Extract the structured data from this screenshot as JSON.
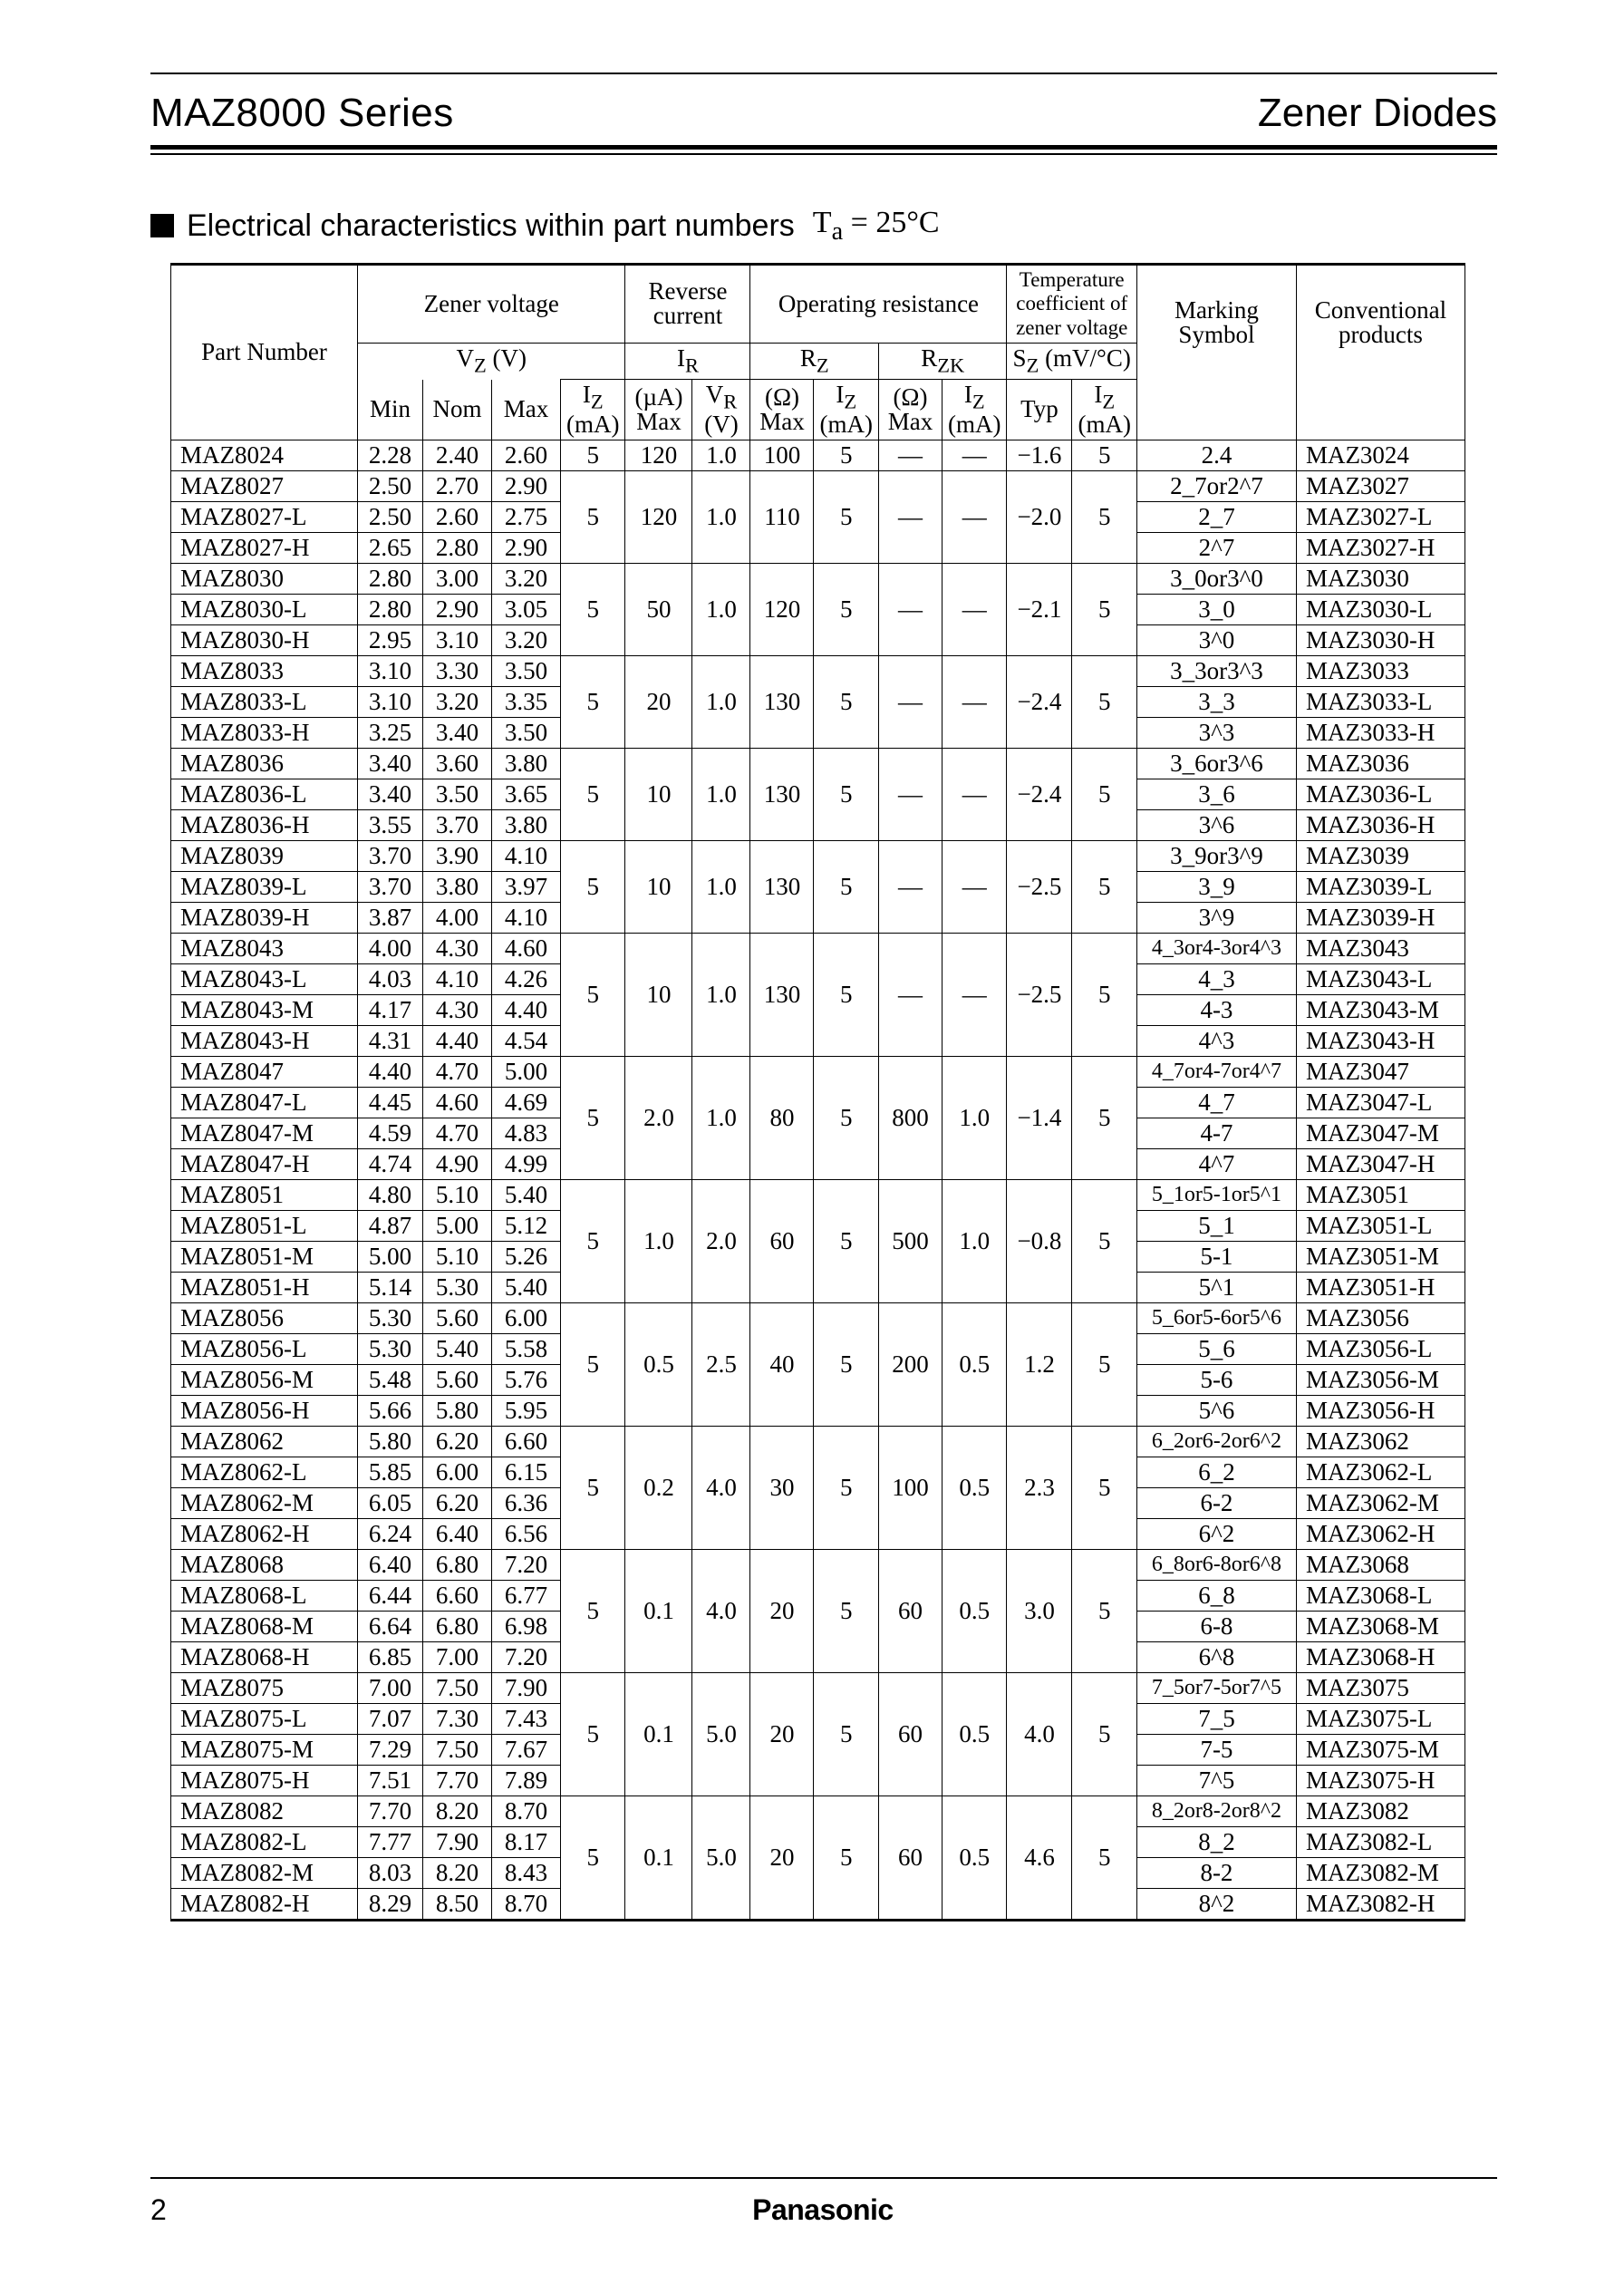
{
  "header": {
    "series": "MAZ8000 Series",
    "category": "Zener Diodes"
  },
  "section": {
    "title": "Electrical characteristics within part numbers",
    "condition_html": "T<sub>a</sub> = 25°C"
  },
  "columns": {
    "part_number": "Part Number",
    "zener_voltage": "Zener voltage",
    "reverse_current": "Reverse current",
    "operating_resistance": "Operating resistance",
    "temp_coef": "Temperature coefficient of zener voltage",
    "marking": "Marking Symbol",
    "conventional": "Conventional products",
    "vz": "V<sub>Z</sub> (V)",
    "ir": "I<sub>R</sub>",
    "rz": "R<sub>Z</sub>",
    "rzk": "R<sub>ZK</sub>",
    "sz": "S<sub>Z</sub> (mV/°C)",
    "min": "Min",
    "nom": "Nom",
    "max": "Max",
    "iz_ma": "I<sub>Z</sub> (mA)",
    "ua_max": "(µA) Max",
    "vr_v": "V<sub>R</sub> (V)",
    "ohm_max": "(Ω) Max",
    "typ": "Typ"
  },
  "groups": [
    {
      "shared": {
        "iz_vz": "5",
        "ir_max": "120",
        "vr": "1.0",
        "rz_max": "100",
        "rz_iz": "5",
        "rzk_max": "—",
        "rzk_iz": "—",
        "sz_typ": "−1.6",
        "sz_iz": "5"
      },
      "rows": [
        {
          "pn": "MAZ8024",
          "min": "2.28",
          "nom": "2.40",
          "max": "2.60",
          "mark": "2.4",
          "conv": "MAZ3024"
        }
      ]
    },
    {
      "shared": {
        "iz_vz": "5",
        "ir_max": "120",
        "vr": "1.0",
        "rz_max": "110",
        "rz_iz": "5",
        "rzk_max": "—",
        "rzk_iz": "—",
        "sz_typ": "−2.0",
        "sz_iz": "5"
      },
      "rows": [
        {
          "pn": "MAZ8027",
          "min": "2.50",
          "nom": "2.70",
          "max": "2.90",
          "mark": "2_7or2^7",
          "conv": "MAZ3027"
        },
        {
          "pn": "MAZ8027-L",
          "min": "2.50",
          "nom": "2.60",
          "max": "2.75",
          "mark": "2_7",
          "conv": "MAZ3027-L"
        },
        {
          "pn": "MAZ8027-H",
          "min": "2.65",
          "nom": "2.80",
          "max": "2.90",
          "mark": "2^7",
          "conv": "MAZ3027-H"
        }
      ]
    },
    {
      "shared": {
        "iz_vz": "5",
        "ir_max": "50",
        "vr": "1.0",
        "rz_max": "120",
        "rz_iz": "5",
        "rzk_max": "—",
        "rzk_iz": "—",
        "sz_typ": "−2.1",
        "sz_iz": "5"
      },
      "rows": [
        {
          "pn": "MAZ8030",
          "min": "2.80",
          "nom": "3.00",
          "max": "3.20",
          "mark": "3_0or3^0",
          "conv": "MAZ3030"
        },
        {
          "pn": "MAZ8030-L",
          "min": "2.80",
          "nom": "2.90",
          "max": "3.05",
          "mark": "3_0",
          "conv": "MAZ3030-L"
        },
        {
          "pn": "MAZ8030-H",
          "min": "2.95",
          "nom": "3.10",
          "max": "3.20",
          "mark": "3^0",
          "conv": "MAZ3030-H"
        }
      ]
    },
    {
      "shared": {
        "iz_vz": "5",
        "ir_max": "20",
        "vr": "1.0",
        "rz_max": "130",
        "rz_iz": "5",
        "rzk_max": "—",
        "rzk_iz": "—",
        "sz_typ": "−2.4",
        "sz_iz": "5"
      },
      "rows": [
        {
          "pn": "MAZ8033",
          "min": "3.10",
          "nom": "3.30",
          "max": "3.50",
          "mark": "3_3or3^3",
          "conv": "MAZ3033"
        },
        {
          "pn": "MAZ8033-L",
          "min": "3.10",
          "nom": "3.20",
          "max": "3.35",
          "mark": "3_3",
          "conv": "MAZ3033-L"
        },
        {
          "pn": "MAZ8033-H",
          "min": "3.25",
          "nom": "3.40",
          "max": "3.50",
          "mark": "3^3",
          "conv": "MAZ3033-H"
        }
      ]
    },
    {
      "shared": {
        "iz_vz": "5",
        "ir_max": "10",
        "vr": "1.0",
        "rz_max": "130",
        "rz_iz": "5",
        "rzk_max": "—",
        "rzk_iz": "—",
        "sz_typ": "−2.4",
        "sz_iz": "5"
      },
      "rows": [
        {
          "pn": "MAZ8036",
          "min": "3.40",
          "nom": "3.60",
          "max": "3.80",
          "mark": "3_6or3^6",
          "conv": "MAZ3036"
        },
        {
          "pn": "MAZ8036-L",
          "min": "3.40",
          "nom": "3.50",
          "max": "3.65",
          "mark": "3_6",
          "conv": "MAZ3036-L"
        },
        {
          "pn": "MAZ8036-H",
          "min": "3.55",
          "nom": "3.70",
          "max": "3.80",
          "mark": "3^6",
          "conv": "MAZ3036-H"
        }
      ]
    },
    {
      "shared": {
        "iz_vz": "5",
        "ir_max": "10",
        "vr": "1.0",
        "rz_max": "130",
        "rz_iz": "5",
        "rzk_max": "—",
        "rzk_iz": "—",
        "sz_typ": "−2.5",
        "sz_iz": "5"
      },
      "rows": [
        {
          "pn": "MAZ8039",
          "min": "3.70",
          "nom": "3.90",
          "max": "4.10",
          "mark": "3_9or3^9",
          "conv": "MAZ3039"
        },
        {
          "pn": "MAZ8039-L",
          "min": "3.70",
          "nom": "3.80",
          "max": "3.97",
          "mark": "3_9",
          "conv": "MAZ3039-L"
        },
        {
          "pn": "MAZ8039-H",
          "min": "3.87",
          "nom": "4.00",
          "max": "4.10",
          "mark": "3^9",
          "conv": "MAZ3039-H"
        }
      ]
    },
    {
      "shared": {
        "iz_vz": "5",
        "ir_max": "10",
        "vr": "1.0",
        "rz_max": "130",
        "rz_iz": "5",
        "rzk_max": "—",
        "rzk_iz": "—",
        "sz_typ": "−2.5",
        "sz_iz": "5"
      },
      "rows": [
        {
          "pn": "MAZ8043",
          "min": "4.00",
          "nom": "4.30",
          "max": "4.60",
          "mark": "4_3or4-3or4^3",
          "conv": "MAZ3043"
        },
        {
          "pn": "MAZ8043-L",
          "min": "4.03",
          "nom": "4.10",
          "max": "4.26",
          "mark": "4_3",
          "conv": "MAZ3043-L"
        },
        {
          "pn": "MAZ8043-M",
          "min": "4.17",
          "nom": "4.30",
          "max": "4.40",
          "mark": "4-3",
          "conv": "MAZ3043-M"
        },
        {
          "pn": "MAZ8043-H",
          "min": "4.31",
          "nom": "4.40",
          "max": "4.54",
          "mark": "4^3",
          "conv": "MAZ3043-H"
        }
      ]
    },
    {
      "shared": {
        "iz_vz": "5",
        "ir_max": "2.0",
        "vr": "1.0",
        "rz_max": "80",
        "rz_iz": "5",
        "rzk_max": "800",
        "rzk_iz": "1.0",
        "sz_typ": "−1.4",
        "sz_iz": "5"
      },
      "rows": [
        {
          "pn": "MAZ8047",
          "min": "4.40",
          "nom": "4.70",
          "max": "5.00",
          "mark": "4_7or4-7or4^7",
          "conv": "MAZ3047"
        },
        {
          "pn": "MAZ8047-L",
          "min": "4.45",
          "nom": "4.60",
          "max": "4.69",
          "mark": "4_7",
          "conv": "MAZ3047-L"
        },
        {
          "pn": "MAZ8047-M",
          "min": "4.59",
          "nom": "4.70",
          "max": "4.83",
          "mark": "4-7",
          "conv": "MAZ3047-M"
        },
        {
          "pn": "MAZ8047-H",
          "min": "4.74",
          "nom": "4.90",
          "max": "4.99",
          "mark": "4^7",
          "conv": "MAZ3047-H"
        }
      ]
    },
    {
      "shared": {
        "iz_vz": "5",
        "ir_max": "1.0",
        "vr": "2.0",
        "rz_max": "60",
        "rz_iz": "5",
        "rzk_max": "500",
        "rzk_iz": "1.0",
        "sz_typ": "−0.8",
        "sz_iz": "5"
      },
      "rows": [
        {
          "pn": "MAZ8051",
          "min": "4.80",
          "nom": "5.10",
          "max": "5.40",
          "mark": "5_1or5-1or5^1",
          "conv": "MAZ3051"
        },
        {
          "pn": "MAZ8051-L",
          "min": "4.87",
          "nom": "5.00",
          "max": "5.12",
          "mark": "5_1",
          "conv": "MAZ3051-L"
        },
        {
          "pn": "MAZ8051-M",
          "min": "5.00",
          "nom": "5.10",
          "max": "5.26",
          "mark": "5-1",
          "conv": "MAZ3051-M"
        },
        {
          "pn": "MAZ8051-H",
          "min": "5.14",
          "nom": "5.30",
          "max": "5.40",
          "mark": "5^1",
          "conv": "MAZ3051-H"
        }
      ]
    },
    {
      "shared": {
        "iz_vz": "5",
        "ir_max": "0.5",
        "vr": "2.5",
        "rz_max": "40",
        "rz_iz": "5",
        "rzk_max": "200",
        "rzk_iz": "0.5",
        "sz_typ": "1.2",
        "sz_iz": "5"
      },
      "rows": [
        {
          "pn": "MAZ8056",
          "min": "5.30",
          "nom": "5.60",
          "max": "6.00",
          "mark": "5_6or5-6or5^6",
          "conv": "MAZ3056"
        },
        {
          "pn": "MAZ8056-L",
          "min": "5.30",
          "nom": "5.40",
          "max": "5.58",
          "mark": "5_6",
          "conv": "MAZ3056-L"
        },
        {
          "pn": "MAZ8056-M",
          "min": "5.48",
          "nom": "5.60",
          "max": "5.76",
          "mark": "5-6",
          "conv": "MAZ3056-M"
        },
        {
          "pn": "MAZ8056-H",
          "min": "5.66",
          "nom": "5.80",
          "max": "5.95",
          "mark": "5^6",
          "conv": "MAZ3056-H"
        }
      ]
    },
    {
      "shared": {
        "iz_vz": "5",
        "ir_max": "0.2",
        "vr": "4.0",
        "rz_max": "30",
        "rz_iz": "5",
        "rzk_max": "100",
        "rzk_iz": "0.5",
        "sz_typ": "2.3",
        "sz_iz": "5"
      },
      "rows": [
        {
          "pn": "MAZ8062",
          "min": "5.80",
          "nom": "6.20",
          "max": "6.60",
          "mark": "6_2or6-2or6^2",
          "conv": "MAZ3062"
        },
        {
          "pn": "MAZ8062-L",
          "min": "5.85",
          "nom": "6.00",
          "max": "6.15",
          "mark": "6_2",
          "conv": "MAZ3062-L"
        },
        {
          "pn": "MAZ8062-M",
          "min": "6.05",
          "nom": "6.20",
          "max": "6.36",
          "mark": "6-2",
          "conv": "MAZ3062-M"
        },
        {
          "pn": "MAZ8062-H",
          "min": "6.24",
          "nom": "6.40",
          "max": "6.56",
          "mark": "6^2",
          "conv": "MAZ3062-H"
        }
      ]
    },
    {
      "shared": {
        "iz_vz": "5",
        "ir_max": "0.1",
        "vr": "4.0",
        "rz_max": "20",
        "rz_iz": "5",
        "rzk_max": "60",
        "rzk_iz": "0.5",
        "sz_typ": "3.0",
        "sz_iz": "5"
      },
      "rows": [
        {
          "pn": "MAZ8068",
          "min": "6.40",
          "nom": "6.80",
          "max": "7.20",
          "mark": "6_8or6-8or6^8",
          "conv": "MAZ3068"
        },
        {
          "pn": "MAZ8068-L",
          "min": "6.44",
          "nom": "6.60",
          "max": "6.77",
          "mark": "6_8",
          "conv": "MAZ3068-L"
        },
        {
          "pn": "MAZ8068-M",
          "min": "6.64",
          "nom": "6.80",
          "max": "6.98",
          "mark": "6-8",
          "conv": "MAZ3068-M"
        },
        {
          "pn": "MAZ8068-H",
          "min": "6.85",
          "nom": "7.00",
          "max": "7.20",
          "mark": "6^8",
          "conv": "MAZ3068-H"
        }
      ]
    },
    {
      "shared": {
        "iz_vz": "5",
        "ir_max": "0.1",
        "vr": "5.0",
        "rz_max": "20",
        "rz_iz": "5",
        "rzk_max": "60",
        "rzk_iz": "0.5",
        "sz_typ": "4.0",
        "sz_iz": "5"
      },
      "rows": [
        {
          "pn": "MAZ8075",
          "min": "7.00",
          "nom": "7.50",
          "max": "7.90",
          "mark": "7_5or7-5or7^5",
          "conv": "MAZ3075"
        },
        {
          "pn": "MAZ8075-L",
          "min": "7.07",
          "nom": "7.30",
          "max": "7.43",
          "mark": "7_5",
          "conv": "MAZ3075-L"
        },
        {
          "pn": "MAZ8075-M",
          "min": "7.29",
          "nom": "7.50",
          "max": "7.67",
          "mark": "7-5",
          "conv": "MAZ3075-M"
        },
        {
          "pn": "MAZ8075-H",
          "min": "7.51",
          "nom": "7.70",
          "max": "7.89",
          "mark": "7^5",
          "conv": "MAZ3075-H"
        }
      ]
    },
    {
      "shared": {
        "iz_vz": "5",
        "ir_max": "0.1",
        "vr": "5.0",
        "rz_max": "20",
        "rz_iz": "5",
        "rzk_max": "60",
        "rzk_iz": "0.5",
        "sz_typ": "4.6",
        "sz_iz": "5"
      },
      "rows": [
        {
          "pn": "MAZ8082",
          "min": "7.70",
          "nom": "8.20",
          "max": "8.70",
          "mark": "8_2or8-2or8^2",
          "conv": "MAZ3082"
        },
        {
          "pn": "MAZ8082-L",
          "min": "7.77",
          "nom": "7.90",
          "max": "8.17",
          "mark": "8_2",
          "conv": "MAZ3082-L"
        },
        {
          "pn": "MAZ8082-M",
          "min": "8.03",
          "nom": "8.20",
          "max": "8.43",
          "mark": "8-2",
          "conv": "MAZ3082-M"
        },
        {
          "pn": "MAZ8082-H",
          "min": "8.29",
          "nom": "8.50",
          "max": "8.70",
          "mark": "8^2",
          "conv": "MAZ3082-H"
        }
      ]
    }
  ],
  "footer": {
    "page": "2",
    "brand": "Panasonic"
  }
}
